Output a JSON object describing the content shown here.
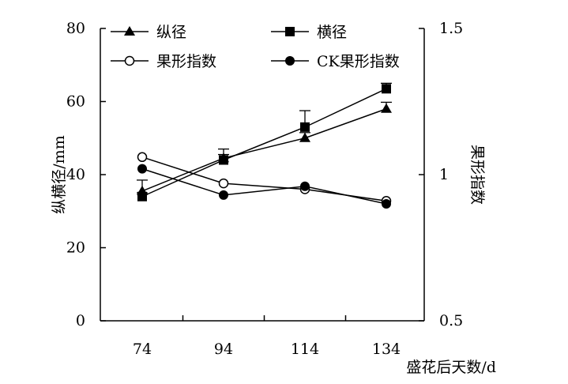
{
  "chart_data": {
    "type": "line",
    "title": "",
    "xlabel": "盛花后天数/d",
    "ylabel": "纵横径/mm",
    "y2label": "果形指数",
    "categories": [
      74,
      94,
      114,
      134
    ],
    "x_tick_labels": [
      "74",
      "94",
      "114",
      "134"
    ],
    "ylim": [
      0,
      80
    ],
    "y_tick_labels": [
      "0",
      "20",
      "40",
      "60",
      "80"
    ],
    "y2lim": [
      0.5,
      1.5
    ],
    "y2_tick_labels": [
      "0.5",
      "1",
      "1.5"
    ],
    "legend_position": "top",
    "series": [
      {
        "name": "纵径",
        "axis": "left",
        "marker": "filled-triangle",
        "values": [
          35.5,
          44.5,
          50.0,
          58.0
        ],
        "errors": [
          3.0,
          2.5,
          1.5,
          1.8
        ]
      },
      {
        "name": "横径",
        "axis": "left",
        "marker": "filled-square",
        "values": [
          34.0,
          44.0,
          53.0,
          63.5
        ],
        "errors": [
          1.0,
          1.5,
          4.5,
          1.5
        ]
      },
      {
        "name": "果形指数",
        "axis": "right",
        "marker": "open-circle",
        "values": [
          1.06,
          0.97,
          0.95,
          0.91
        ]
      },
      {
        "name": "CK果形指数",
        "axis": "right",
        "marker": "filled-circle",
        "values": [
          1.02,
          0.93,
          0.96,
          0.9
        ]
      }
    ]
  }
}
